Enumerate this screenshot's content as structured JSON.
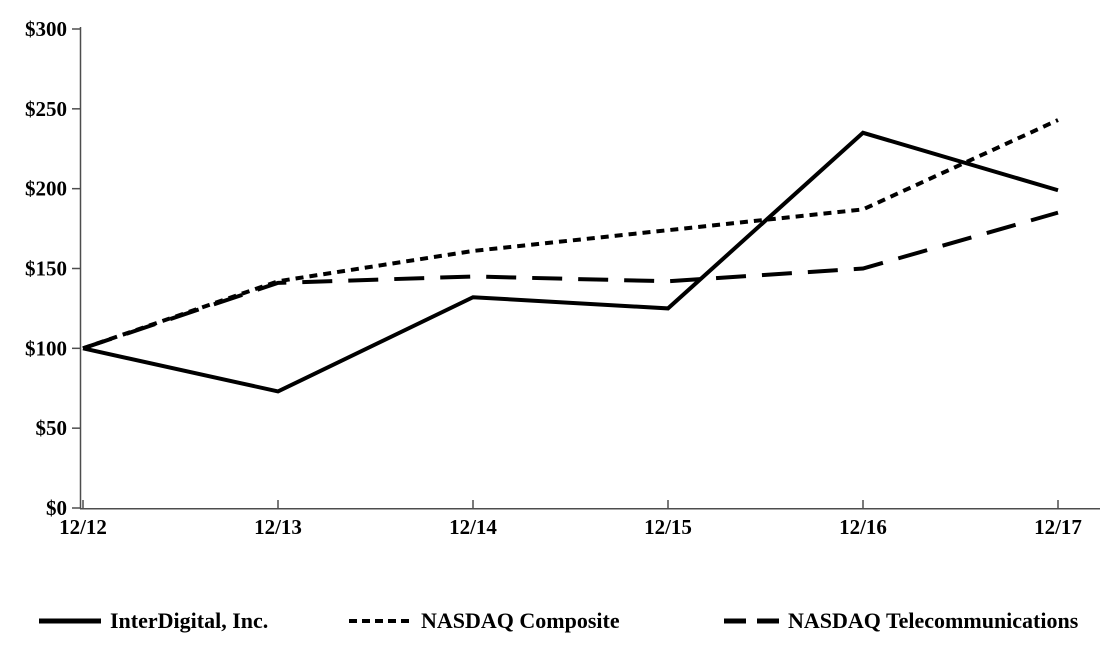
{
  "chart_data": {
    "type": "line",
    "title": "",
    "xlabel": "",
    "ylabel": "",
    "x": [
      "12/12",
      "12/13",
      "12/14",
      "12/15",
      "12/16",
      "12/17"
    ],
    "series": [
      {
        "name": "InterDigital, Inc.",
        "line_style": "solid",
        "values": [
          100,
          73,
          132,
          125,
          235,
          199
        ]
      },
      {
        "name": "NASDAQ Composite",
        "line_style": "dotted",
        "values": [
          100,
          142,
          161,
          174,
          187,
          243
        ]
      },
      {
        "name": "NASDAQ Telecommunications",
        "line_style": "dashed",
        "values": [
          100,
          141,
          145,
          142,
          150,
          185
        ]
      }
    ],
    "ylim": [
      0,
      300
    ],
    "ytick_step": 50,
    "ytick_labels": [
      "$0",
      "$50",
      "$100",
      "$150",
      "$200",
      "$250",
      "$300"
    ],
    "grid": false,
    "legend_position": "bottom",
    "line_color": "#000000",
    "axis_color": "#4d4d4d",
    "background_color": "#ffffff"
  }
}
